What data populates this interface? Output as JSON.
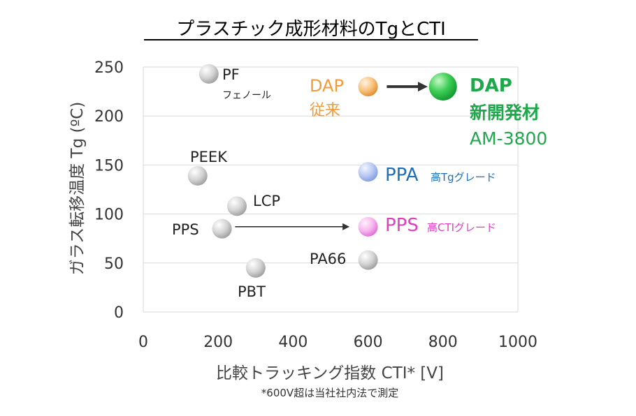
{
  "colors": {
    "gray_point": "#c9c9c9",
    "dap_conventional": "#f29a3a",
    "dap_new": "#1fa84b",
    "ppa": "#1f6fb8",
    "pps_high_cti": "#e040c0",
    "grid": "#d9d9d9",
    "arrow": "#333333"
  },
  "chart_data": {
    "type": "scatter",
    "title": "プラスチック成形材料のTgとCTI",
    "xlabel": "比較トラッキング指数 CTI* [V]",
    "ylabel": "ガラス転移温度 Tg (ºC)",
    "footnote": "*600V超は当社社内法で測定",
    "xlim": [
      0,
      1000
    ],
    "ylim": [
      0,
      250
    ],
    "x_ticks": [
      "0",
      "200",
      "400",
      "600",
      "800",
      "1000"
    ],
    "y_ticks": [
      "0",
      "50",
      "100",
      "150",
      "200",
      "250"
    ],
    "grid": "horizontal",
    "points": [
      {
        "x": 175,
        "y": 243,
        "label": "PF",
        "sublabel": "フェノール",
        "color": "gray"
      },
      {
        "x": 145,
        "y": 139,
        "label": "PEEK",
        "color": "gray"
      },
      {
        "x": 250,
        "y": 108,
        "label": "LCP",
        "color": "gray"
      },
      {
        "x": 210,
        "y": 85,
        "label": "PPS",
        "color": "gray"
      },
      {
        "x": 300,
        "y": 45,
        "label": "PBT",
        "color": "gray"
      },
      {
        "x": 600,
        "y": 53,
        "label": "PA66",
        "color": "gray"
      },
      {
        "x": 600,
        "y": 230,
        "label": "DAP",
        "sublabel": "従来",
        "color": "dap_conventional"
      },
      {
        "x": 800,
        "y": 230,
        "label": "DAP",
        "sublabel": "新開発材",
        "sublabel2": "AM-3800",
        "color": "dap_new"
      },
      {
        "x": 600,
        "y": 143,
        "label": "PPA",
        "sublabel": "高Tgグレード",
        "color": "ppa"
      },
      {
        "x": 600,
        "y": 87,
        "label": "PPS",
        "sublabel": "高CTIグレード",
        "color": "pps_high_cti"
      }
    ],
    "arrows": [
      {
        "from": [
          650,
          230
        ],
        "to": [
          750,
          230
        ]
      },
      {
        "from": [
          245,
          87
        ],
        "to": [
          545,
          87
        ]
      }
    ]
  }
}
